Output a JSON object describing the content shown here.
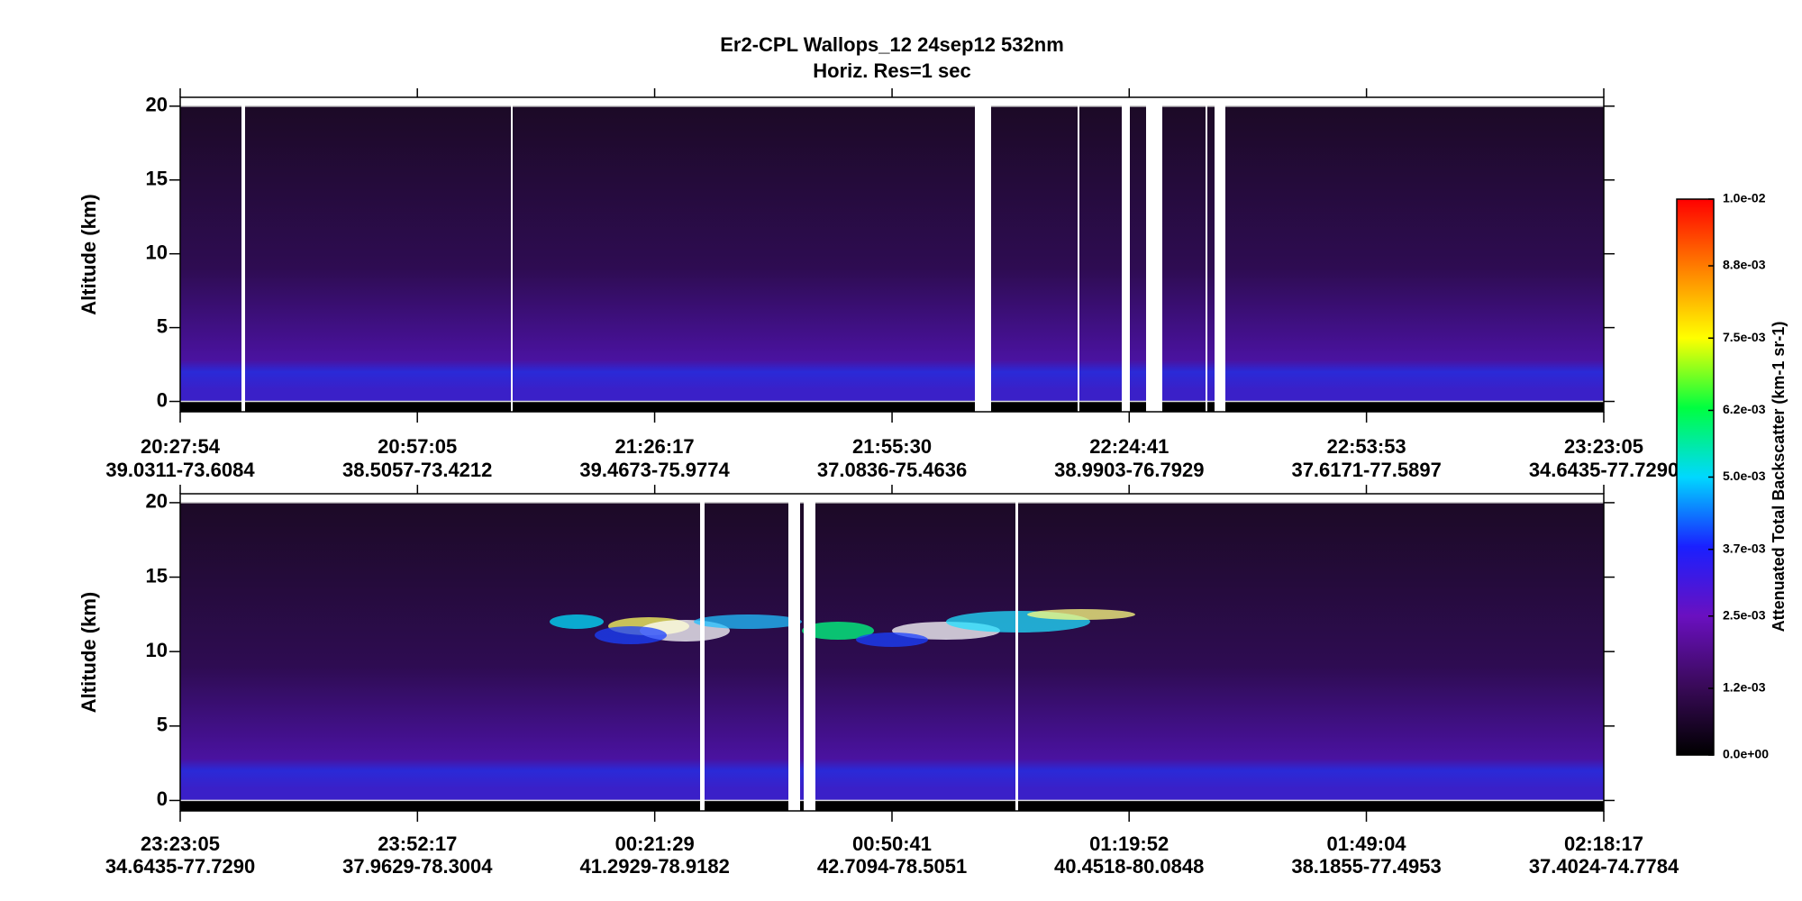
{
  "chart_data": [
    {
      "type": "curtain",
      "title": "Er2-CPL  Wallops_12  24sep12  532nm",
      "subtitle": "Horiz. Res=1 sec",
      "y_label": "Altitude (km)",
      "ylim": [
        -0.7,
        20.6
      ],
      "yticks": [
        0,
        5,
        10,
        15,
        20
      ],
      "xlim": [
        73674,
        84185
      ],
      "xticks": [
        {
          "value": 73674,
          "label": "20:27:54"
        },
        {
          "value": 75425,
          "label": "20:57:05"
        },
        {
          "value": 77177,
          "label": "21:26:17"
        },
        {
          "value": 78930,
          "label": "21:55:30"
        },
        {
          "value": 80681,
          "label": "22:24:41"
        },
        {
          "value": 82433,
          "label": "22:53:53"
        },
        {
          "value": 84185,
          "label": "23:23:05"
        }
      ],
      "xtick_locations": [
        "39.0311-73.6084",
        "38.5057-73.4212",
        "39.4673-75.9774",
        "37.0836-75.4636",
        "38.9903-76.7929",
        "37.6171-77.5897",
        "34.6435-77.7290"
      ]
    },
    {
      "type": "curtain",
      "y_label": "Altitude (km)",
      "ylim": [
        -0.7,
        20.6
      ],
      "yticks": [
        0,
        5,
        10,
        15,
        20
      ],
      "xlim": [
        84185,
        94697
      ],
      "xticks": [
        {
          "value": 84185,
          "label": "23:23:05"
        },
        {
          "value": 85937,
          "label": "23:52:17"
        },
        {
          "value": 87689,
          "label": "00:21:29"
        },
        {
          "value": 89441,
          "label": "00:50:41"
        },
        {
          "value": 91192,
          "label": "01:19:52"
        },
        {
          "value": 92944,
          "label": "01:49:04"
        },
        {
          "value": 94697,
          "label": "02:18:17"
        }
      ],
      "xtick_locations": [
        "34.6435-77.7290",
        "37.9629-78.3004",
        "41.2929-78.9182",
        "42.7094-78.5051",
        "40.4518-80.0848",
        "38.1855-77.4953",
        "37.4024-74.7784"
      ]
    }
  ],
  "colorbar": {
    "label": "Attenuated Total Backscatter (km-1 sr-1)",
    "lim": [
      0,
      0.01
    ],
    "colormap": [
      "#000000",
      "#3a0a5a",
      "#6a10c0",
      "#1a20ff",
      "#00d8ff",
      "#00ff40",
      "#ffff00",
      "#ff8000",
      "#ff0000"
    ],
    "ticks": [
      {
        "value": 0,
        "label": "0.0e+00"
      },
      {
        "value": 0.0012,
        "label": "1.2e-03"
      },
      {
        "value": 0.0025,
        "label": "2.5e-03"
      },
      {
        "value": 0.0037,
        "label": "3.7e-03"
      },
      {
        "value": 0.005,
        "label": "5.0e-03"
      },
      {
        "value": 0.0062,
        "label": "6.2e-03"
      },
      {
        "value": 0.0075,
        "label": "7.5e-03"
      },
      {
        "value": 0.0088,
        "label": "8.8e-03"
      },
      {
        "value": 0.01,
        "label": "1.0e-02"
      }
    ]
  }
}
